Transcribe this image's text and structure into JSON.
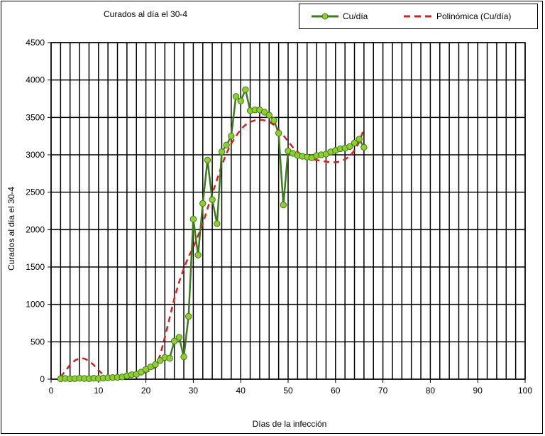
{
  "chart_data": {
    "type": "line",
    "title": "Curados al día el 30-4",
    "xlabel": "Días de la infección",
    "ylabel": "Curados al día el 30-4",
    "xlim": [
      0,
      100
    ],
    "ylim": [
      0,
      4500
    ],
    "xticks": [
      0,
      10,
      20,
      30,
      40,
      50,
      60,
      70,
      80,
      90,
      100
    ],
    "yticks": [
      0,
      500,
      1000,
      1500,
      2000,
      2500,
      3000,
      3500,
      4000,
      4500
    ],
    "grid": true,
    "legend_position": "top-right",
    "series": [
      {
        "name": "Cu/día",
        "color": "#3e7b1e",
        "marker_color": "#8fce2e",
        "style": "line-markers",
        "points": [
          [
            2,
            5
          ],
          [
            3,
            10
          ],
          [
            4,
            5
          ],
          [
            5,
            8
          ],
          [
            6,
            12
          ],
          [
            7,
            10
          ],
          [
            8,
            8
          ],
          [
            9,
            12
          ],
          [
            10,
            10
          ],
          [
            11,
            15
          ],
          [
            12,
            20
          ],
          [
            13,
            22
          ],
          [
            14,
            25
          ],
          [
            15,
            30
          ],
          [
            16,
            45
          ],
          [
            17,
            60
          ],
          [
            18,
            65
          ],
          [
            19,
            95
          ],
          [
            20,
            130
          ],
          [
            21,
            165
          ],
          [
            22,
            195
          ],
          [
            23,
            250
          ],
          [
            24,
            290
          ],
          [
            25,
            280
          ],
          [
            26,
            510
          ],
          [
            27,
            560
          ],
          [
            28,
            300
          ],
          [
            29,
            840
          ],
          [
            30,
            2140
          ],
          [
            31,
            1660
          ],
          [
            32,
            2350
          ],
          [
            33,
            2930
          ],
          [
            34,
            2400
          ],
          [
            35,
            2080
          ],
          [
            36,
            3040
          ],
          [
            37,
            3130
          ],
          [
            38,
            3250
          ],
          [
            39,
            3780
          ],
          [
            40,
            3720
          ],
          [
            41,
            3870
          ],
          [
            42,
            3590
          ],
          [
            43,
            3600
          ],
          [
            44,
            3600
          ],
          [
            45,
            3570
          ],
          [
            46,
            3530
          ],
          [
            47,
            3460
          ],
          [
            48,
            3290
          ],
          [
            49,
            2330
          ],
          [
            50,
            3050
          ],
          [
            51,
            3020
          ],
          [
            52,
            2990
          ],
          [
            53,
            2980
          ],
          [
            54,
            2970
          ],
          [
            55,
            2960
          ],
          [
            56,
            2990
          ],
          [
            57,
            3000
          ],
          [
            58,
            3010
          ],
          [
            59,
            3040
          ],
          [
            60,
            3060
          ],
          [
            61,
            3080
          ],
          [
            62,
            3090
          ],
          [
            63,
            3110
          ],
          [
            64,
            3160
          ],
          [
            65,
            3210
          ],
          [
            66,
            3100
          ]
        ]
      },
      {
        "name": "Polinómica (Cu/día)",
        "color": "#d62020",
        "style": "dashed",
        "points": [
          [
            2,
            30
          ],
          [
            3,
            110
          ],
          [
            4,
            190
          ],
          [
            5,
            250
          ],
          [
            6,
            280
          ],
          [
            7,
            275
          ],
          [
            8,
            245
          ],
          [
            9,
            190
          ],
          [
            10,
            120
          ],
          [
            11,
            60
          ],
          [
            12,
            20
          ],
          [
            13,
            5
          ],
          [
            14,
            5
          ],
          [
            15,
            15
          ],
          [
            16,
            30
          ],
          [
            17,
            45
          ],
          [
            18,
            60
          ],
          [
            19,
            75
          ],
          [
            20,
            95
          ],
          [
            21,
            120
          ],
          [
            22,
            170
          ],
          [
            23,
            320
          ],
          [
            24,
            560
          ],
          [
            25,
            820
          ],
          [
            26,
            1080
          ],
          [
            27,
            1300
          ],
          [
            28,
            1480
          ],
          [
            29,
            1640
          ],
          [
            30,
            1760
          ],
          [
            31,
            1920
          ],
          [
            32,
            2080
          ],
          [
            33,
            2280
          ],
          [
            34,
            2480
          ],
          [
            35,
            2670
          ],
          [
            36,
            2860
          ],
          [
            37,
            3020
          ],
          [
            38,
            3150
          ],
          [
            39,
            3250
          ],
          [
            40,
            3340
          ],
          [
            41,
            3400
          ],
          [
            42,
            3440
          ],
          [
            43,
            3460
          ],
          [
            44,
            3470
          ],
          [
            45,
            3460
          ],
          [
            46,
            3440
          ],
          [
            47,
            3400
          ],
          [
            48,
            3340
          ],
          [
            49,
            3260
          ],
          [
            50,
            3180
          ],
          [
            51,
            3100
          ],
          [
            52,
            3040
          ],
          [
            53,
            2990
          ],
          [
            54,
            2960
          ],
          [
            55,
            2940
          ],
          [
            56,
            2930
          ],
          [
            57,
            2920
          ],
          [
            58,
            2910
          ],
          [
            59,
            2900
          ],
          [
            60,
            2900
          ],
          [
            61,
            2910
          ],
          [
            62,
            2940
          ],
          [
            63,
            2980
          ],
          [
            64,
            3060
          ],
          [
            65,
            3170
          ],
          [
            66,
            3350
          ]
        ]
      }
    ]
  }
}
